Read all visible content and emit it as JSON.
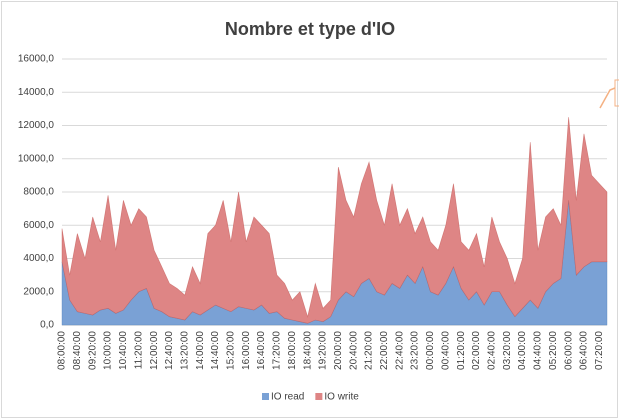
{
  "chart_data": {
    "type": "stacked_area",
    "title": "Nombre et type d'IO",
    "categories": [
      "08:00:00",
      null,
      "08:40:00",
      null,
      "09:20:00",
      null,
      "10:00:00",
      null,
      "10:40:00",
      null,
      "11:20:00",
      null,
      "12:00:00",
      null,
      "12:40:00",
      null,
      "13:20:00",
      null,
      "14:00:00",
      null,
      "14:40:00",
      null,
      "15:20:00",
      null,
      "16:00:00",
      null,
      "16:40:00",
      null,
      "17:20:00",
      null,
      "18:00:00",
      null,
      "18:40:00",
      null,
      "19:20:00",
      null,
      "20:00:00",
      null,
      "20:40:00",
      null,
      "21:20:00",
      null,
      "22:00:00",
      null,
      "22:40:00",
      null,
      "23:20:00",
      null,
      "00:00:00",
      null,
      "00:40:00",
      null,
      "01:20:00",
      null,
      "02:00:00",
      null,
      "02:40:00",
      null,
      "03:20:00",
      null,
      "04:00:00",
      null,
      "04:40:00",
      null,
      "05:20:00",
      null,
      "06:00:00",
      null,
      "06:40:00",
      null,
      "07:20:00",
      null
    ],
    "series": [
      {
        "name": "IO read",
        "color": "#7aa1d5",
        "values": [
          3800,
          1500,
          800,
          700,
          600,
          900,
          1000,
          700,
          900,
          1500,
          2000,
          2200,
          1000,
          800,
          500,
          400,
          300,
          800,
          600,
          900,
          1200,
          1000,
          800,
          1100,
          1000,
          900,
          1200,
          700,
          800,
          400,
          300,
          200,
          100,
          300,
          200,
          500,
          1500,
          2000,
          1700,
          2500,
          2800,
          2000,
          1800,
          2500,
          2200,
          3000,
          2500,
          3500,
          2000,
          1800,
          2500,
          3500,
          2200,
          1500,
          2000,
          1200,
          2000,
          2000,
          1200,
          500,
          1000,
          1500,
          1000,
          2000,
          2500,
          2800,
          7500,
          3000,
          3500,
          3800,
          3800,
          3800
        ]
      },
      {
        "name": "IO write",
        "color": "#de8585",
        "values": [
          2000,
          1500,
          4700,
          3300,
          5900,
          4100,
          6800,
          3800,
          6600,
          4500,
          5000,
          4300,
          3500,
          2700,
          2000,
          1800,
          1500,
          2700,
          1900,
          4600,
          4800,
          6500,
          4200,
          6900,
          4000,
          5600,
          4800,
          4800,
          2200,
          2100,
          1200,
          1800,
          400,
          2200,
          800,
          1000,
          8000,
          5500,
          4800,
          6000,
          7000,
          5500,
          4200,
          6000,
          3800,
          4000,
          3000,
          3000,
          3000,
          2700,
          3500,
          5000,
          2800,
          3000,
          3500,
          2300,
          4500,
          3000,
          2800,
          2000,
          3000,
          9500,
          3500,
          4500,
          4500,
          3200,
          5000,
          4500,
          8000,
          5200,
          4700,
          4200
        ]
      }
    ],
    "ylim": [
      0,
      16000
    ],
    "yticks": [
      {
        "value": 0,
        "label": "0,0"
      },
      {
        "value": 2000,
        "label": "2000,0"
      },
      {
        "value": 4000,
        "label": "4000,0"
      },
      {
        "value": 6000,
        "label": "6000,0"
      },
      {
        "value": 8000,
        "label": "8000,0"
      },
      {
        "value": 10000,
        "label": "10000,0"
      },
      {
        "value": 12000,
        "label": "12000,0"
      },
      {
        "value": 14000,
        "label": "14000,0"
      },
      {
        "value": 16000,
        "label": "16000,0"
      }
    ],
    "grid": true,
    "legend": "bottom"
  }
}
